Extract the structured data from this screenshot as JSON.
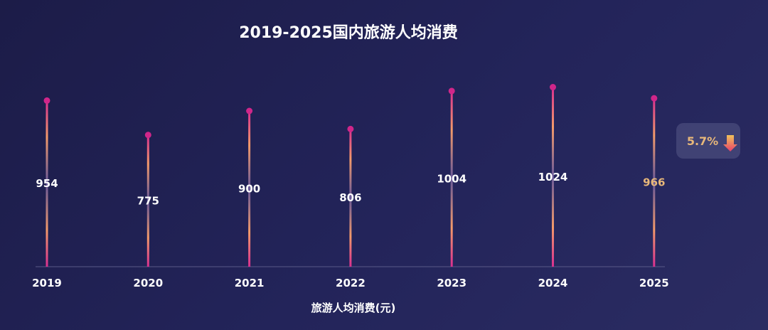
{
  "chart_data": {
    "type": "bar",
    "title": "2019-2025国内旅游人均消费",
    "xlabel": "旅游人均消费(元)",
    "ylabel": "",
    "categories": [
      "2019",
      "2020",
      "2021",
      "2022",
      "2023",
      "2024",
      "2025"
    ],
    "values": [
      954,
      775,
      900,
      806,
      1004,
      1024,
      966
    ],
    "value_labels": [
      "954",
      "775",
      "900",
      "806",
      "1004",
      "1024",
      "966"
    ],
    "highlight_index": 6,
    "ylim": [
      0,
      1100
    ],
    "grid": false,
    "legend": "none",
    "annotation": {
      "text": "5.7%",
      "direction": "down"
    }
  },
  "colors": {
    "stem_base": "#d92f8f",
    "stem_mid": "#f39a6a",
    "stem_center": "#6a5a9a",
    "dot": "#d0268a",
    "highlight_label": "#e8b87a",
    "badge_bg": "#4a4b7c",
    "arrow_top": "#f0c25a",
    "arrow_bottom": "#e8406a"
  }
}
